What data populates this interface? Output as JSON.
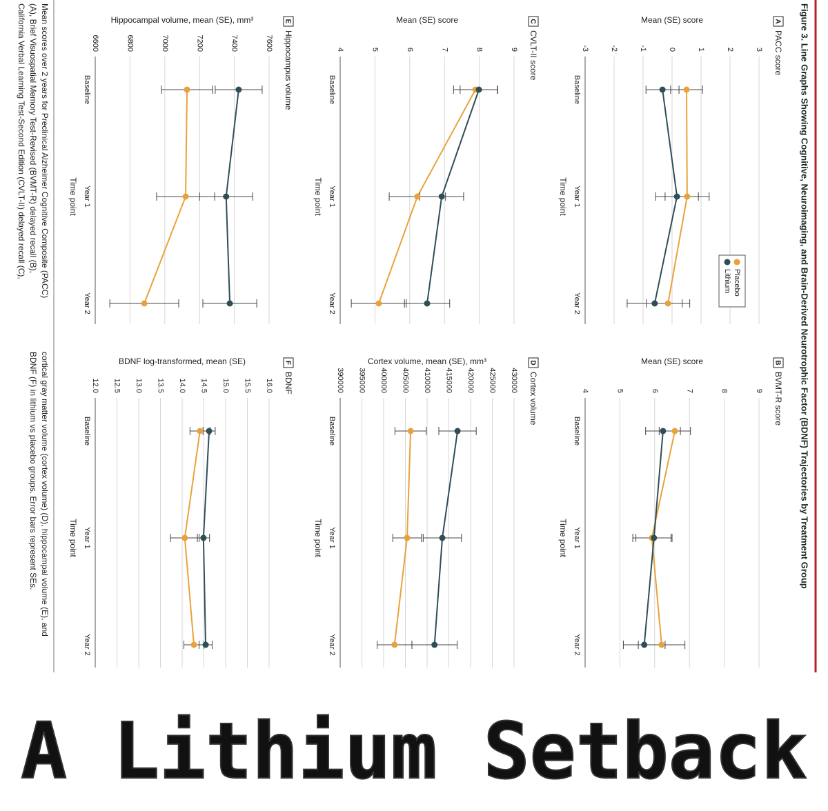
{
  "figure": {
    "title": "Figure 3. Line Graphs Showing Cognitive, Neuroimaging, and Brain-Derived Neurotrophic Factor (BDNF) Trajectories by Treatment Group",
    "caption_left": [
      "Mean scores over 2 years for Preclinical Alzheimer Cognitive Composite (PACC)",
      "(A), Brief Visuospatial Memory Test-Revised (BVMT-R) delayed recall (B),",
      "California Verbal Learning Test-Second Edition (CVLT-II) delayed recall (C),"
    ],
    "caption_right": [
      "cortical gray matter volume (cortex volume) (D), hippocampal volume (E), and",
      "BDNF (F) in lithium vs placebo groups. Error bars represent SEs."
    ],
    "banner": "A Lithium Setback"
  },
  "chart_data": [
    {
      "type": "line",
      "panel": "A",
      "title": "PACC score",
      "y_label": "Mean (SE) score",
      "x_label": "Time point",
      "categories": [
        "Baseline",
        "Year 1",
        "Year 2"
      ],
      "ylim": [
        -3,
        3
      ],
      "yticks": [
        -3,
        -2,
        -1,
        0,
        1,
        2,
        3
      ],
      "grid": true,
      "legend": "upper right",
      "series": [
        {
          "name": "Placebo",
          "color": "#e9a23b",
          "values": [
            0.5,
            0.52,
            -0.14
          ],
          "errors": [
            0.55,
            0.76,
            0.75
          ]
        },
        {
          "name": "Lithium",
          "color": "#2e4e57",
          "values": [
            -0.33,
            0.17,
            -0.6
          ],
          "errors": [
            0.57,
            0.74,
            0.95
          ]
        }
      ]
    },
    {
      "type": "line",
      "panel": "B",
      "title": "BVMT-R score",
      "y_label": "Mean (SE) score",
      "x_label": "Time point",
      "categories": [
        "Baseline",
        "Year 1",
        "Year 2"
      ],
      "ylim": [
        4,
        9
      ],
      "yticks": [
        4,
        5,
        6,
        7,
        8,
        9
      ],
      "grid": true,
      "series": [
        {
          "name": "Placebo",
          "color": "#e9a23b",
          "values": [
            6.58,
            5.92,
            6.2
          ],
          "errors": [
            0.45,
            0.55,
            0.67
          ]
        },
        {
          "name": "Lithium",
          "color": "#2e4e57",
          "values": [
            6.24,
            5.98,
            5.7
          ],
          "errors": [
            0.5,
            0.52,
            0.6
          ]
        }
      ]
    },
    {
      "type": "line",
      "panel": "C",
      "title": "CVLT-II score",
      "y_label": "Mean (SE) score",
      "x_label": "Time point",
      "categories": [
        "Baseline",
        "Year 1",
        "Year 2"
      ],
      "ylim": [
        4,
        9
      ],
      "yticks": [
        4,
        5,
        6,
        7,
        8,
        9
      ],
      "grid": true,
      "series": [
        {
          "name": "Placebo",
          "color": "#e9a23b",
          "values": [
            7.89,
            6.22,
            5.11
          ],
          "errors": [
            0.63,
            0.81,
            0.79
          ]
        },
        {
          "name": "Lithium",
          "color": "#2e4e57",
          "values": [
            7.99,
            6.92,
            6.5
          ],
          "errors": [
            0.54,
            0.63,
            0.65
          ]
        }
      ]
    },
    {
      "type": "line",
      "panel": "D",
      "title": "Cortex volume",
      "y_label": "Cortex volume, mean (SE), mm³",
      "x_label": "Time point",
      "categories": [
        "Baseline",
        "Year 1",
        "Year 2"
      ],
      "ylim": [
        390000,
        430000
      ],
      "yticks": [
        390000,
        395000,
        400000,
        405000,
        410000,
        415000,
        420000,
        425000,
        430000
      ],
      "grid": true,
      "series": [
        {
          "name": "Placebo",
          "color": "#e9a23b",
          "values": [
            406200,
            405400,
            402500
          ],
          "errors": [
            3600,
            3300,
            4000
          ]
        },
        {
          "name": "Lithium",
          "color": "#2e4e57",
          "values": [
            417000,
            413500,
            411700
          ],
          "errors": [
            4300,
            4400,
            5200
          ]
        }
      ]
    },
    {
      "type": "line",
      "panel": "E",
      "title": "Hippocampus volume",
      "y_label": "Hippocampal volume, mean (SE), mm³",
      "x_label": "Time point",
      "categories": [
        "Baseline",
        "Year 1",
        "Year 2"
      ],
      "ylim": [
        6600,
        7600
      ],
      "yticks": [
        6600,
        6800,
        7000,
        7200,
        7400,
        7600
      ],
      "grid": true,
      "series": [
        {
          "name": "Placebo",
          "color": "#e9a23b",
          "values": [
            7128,
            7120,
            6882
          ],
          "errors": [
            147,
            167,
            198
          ]
        },
        {
          "name": "Lithium",
          "color": "#2e4e57",
          "values": [
            7425,
            7353,
            7374
          ],
          "errors": [
            135,
            153,
            155
          ]
        }
      ]
    },
    {
      "type": "line",
      "panel": "F",
      "title": "BDNF",
      "y_label": "BDNF log-transformed, mean (SE)",
      "x_label": "Time point",
      "categories": [
        "Baseline",
        "Year 1",
        "Year 2"
      ],
      "ylim": [
        12,
        16
      ],
      "yticks": [
        {
          "value": 12,
          "label": "12.0"
        },
        12.5,
        {
          "value": 13,
          "label": "13.0"
        },
        13.5,
        {
          "value": 14,
          "label": "14.0"
        },
        14.5,
        {
          "value": 15,
          "label": "15.0"
        },
        15.5,
        {
          "value": 16,
          "label": "16.0"
        }
      ],
      "grid": true,
      "series": [
        {
          "name": "Placebo",
          "color": "#e9a23b",
          "values": [
            14.41,
            14.06,
            14.27
          ],
          "errors": [
            0.23,
            0.33,
            0.23
          ]
        },
        {
          "name": "Lithium",
          "color": "#2e4e57",
          "values": [
            14.62,
            14.49,
            14.54
          ],
          "errors": [
            0.14,
            0.14,
            0.15
          ]
        }
      ]
    }
  ]
}
